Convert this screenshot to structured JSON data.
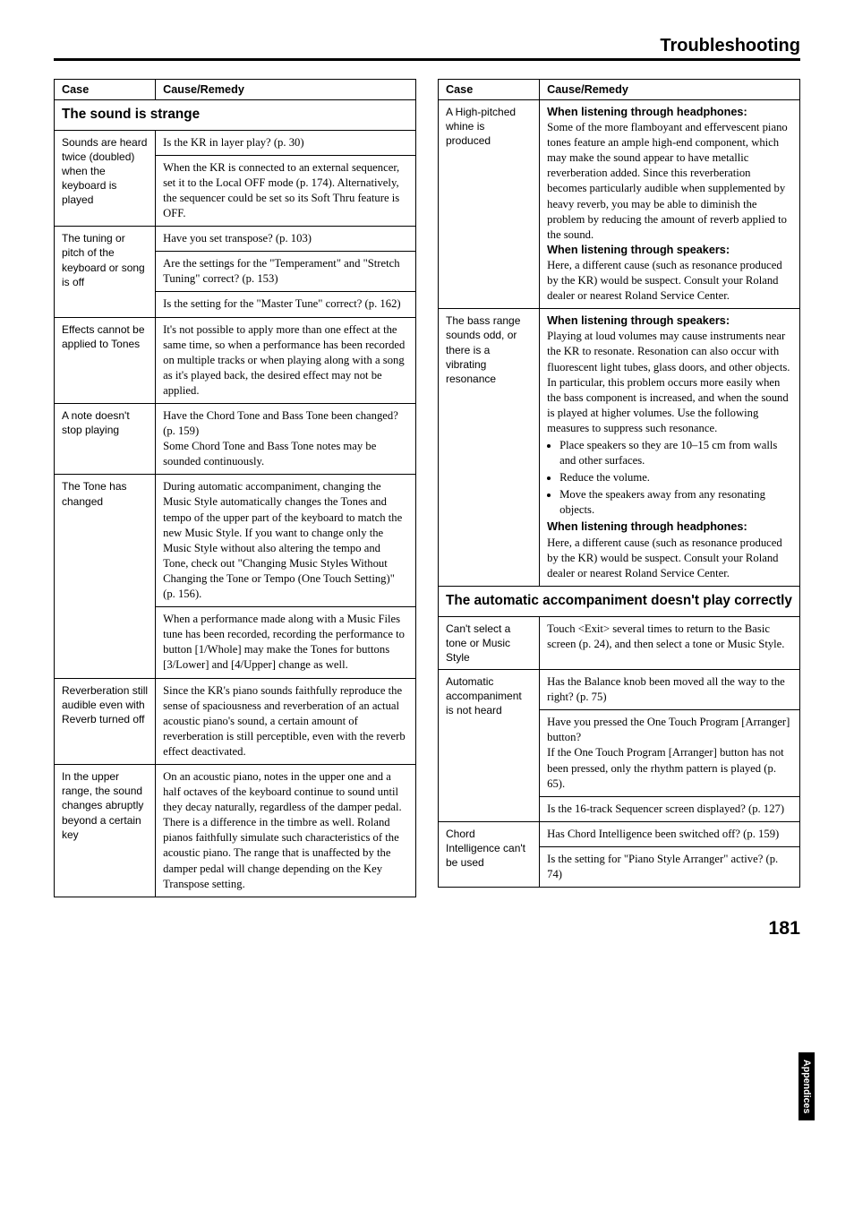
{
  "header": {
    "title": "Troubleshooting"
  },
  "page_number": "181",
  "side_tab": "Appendices",
  "col_headers": {
    "case": "Case",
    "remedy": "Cause/Remedy"
  },
  "sections": {
    "sound_strange": "The sound is strange",
    "auto_accomp": "The automatic accompaniment doesn't play correctly"
  },
  "left": {
    "r1": {
      "case": "Sounds are heard twice (doubled) when the keyboard is played",
      "rem1": "Is the KR in layer play? (p. 30)",
      "rem2": "When the KR is connected to an external sequencer, set it to the Local OFF mode (p. 174). Alternatively, the sequencer could be set so its Soft Thru feature is OFF."
    },
    "r2": {
      "case": "The tuning or pitch of the keyboard or song is off",
      "rem1": "Have you set transpose? (p. 103)",
      "rem2": "Are the settings for the \"Temperament\" and \"Stretch Tuning\" correct? (p. 153)",
      "rem3": "Is the setting for the \"Master Tune\" correct? (p. 162)"
    },
    "r3": {
      "case": "Effects cannot be applied to Tones",
      "rem": "It's not possible to apply more than one effect at the same time, so when a performance has been recorded on multiple tracks or when playing along with a song as it's played back, the desired effect may not be applied."
    },
    "r4": {
      "case": "A note doesn't stop playing",
      "rem": "Have the Chord Tone and Bass Tone been changed? (p. 159)\nSome Chord Tone and Bass Tone notes may be sounded continuously."
    },
    "r5": {
      "case": "The Tone has changed",
      "rem1": "During automatic accompaniment, changing the Music Style automatically changes the Tones and tempo of the upper part of the keyboard to match the new Music Style. If you want to change only the Music Style without also altering the tempo and Tone, check out \"Changing Music Styles Without Changing the Tone or Tempo (One Touch Setting)\" (p. 156).",
      "rem2": "When a performance made along with a Music Files tune has been recorded, recording the performance to button [1/Whole] may make the Tones for buttons [3/Lower] and [4/Upper] change as well."
    },
    "r6": {
      "case": "Reverberation still audible even with Reverb turned off",
      "rem": "Since the KR's piano sounds faithfully reproduce the sense of spaciousness and reverberation of an actual acoustic piano's sound, a certain amount of reverberation is still perceptible, even with the reverb effect deactivated."
    },
    "r7": {
      "case": "In the upper range, the sound changes abruptly beyond a certain key",
      "rem": "On an acoustic piano, notes in the upper one and a half octaves of the keyboard continue to sound until they decay naturally, regardless of the damper pedal. There is a difference in the timbre as well. Roland pianos faithfully simulate such characteristics of the acoustic piano. The range that is unaffected by the damper pedal will change depending on the Key Transpose setting."
    }
  },
  "right": {
    "r1": {
      "case": "A High-pitched whine is produced",
      "h1": "When listening through headphones:",
      "t1": "Some of the more flamboyant and effervescent piano tones feature an ample high-end component, which may make the sound appear to have metallic reverberation added. Since this reverberation becomes particularly audible when supplemented by heavy reverb, you may be able to diminish the problem by reducing the amount of reverb applied to the sound.",
      "h2": "When listening through speakers:",
      "t2": "Here, a different cause (such as resonance produced by the KR) would be suspect. Consult your Roland dealer or nearest Roland Service Center."
    },
    "r2": {
      "case": "The bass range sounds odd, or there is a vibrating resonance",
      "h1": "When listening through speakers:",
      "t1": "Playing at loud volumes may cause instruments near the KR to resonate. Resonation can also occur with fluorescent light tubes, glass doors, and other objects. In particular, this problem occurs more easily when the bass component is increased, and when the sound is played at higher volumes. Use the following measures to suppress such resonance.",
      "b1": "Place speakers so they are 10–15 cm from walls and other surfaces.",
      "b2": "Reduce the volume.",
      "b3": "Move the speakers away from any resonating objects.",
      "h2": "When listening through headphones:",
      "t2": "Here, a different cause (such as resonance produced by the KR) would be suspect. Consult your Roland dealer or nearest Roland Service Center."
    },
    "r3": {
      "case": "Can't select a tone or Music Style",
      "rem": "Touch <Exit> several times to return to the Basic screen (p. 24), and then select a tone or Music Style."
    },
    "r4": {
      "case": "Automatic accompaniment is not heard",
      "rem1": "Has the Balance knob been moved all the way to the right? (p. 75)",
      "rem2": "Have you pressed the One Touch Program [Arranger] button?\nIf the One Touch Program [Arranger] button has not been pressed, only the rhythm pattern is played (p. 65).",
      "rem3": "Is the 16-track Sequencer screen displayed? (p. 127)"
    },
    "r5": {
      "case": "Chord Intelligence can't be used",
      "rem1": "Has Chord Intelligence been switched off? (p. 159)",
      "rem2": "Is the setting for \"Piano Style Arranger\" active? (p. 74)"
    }
  }
}
